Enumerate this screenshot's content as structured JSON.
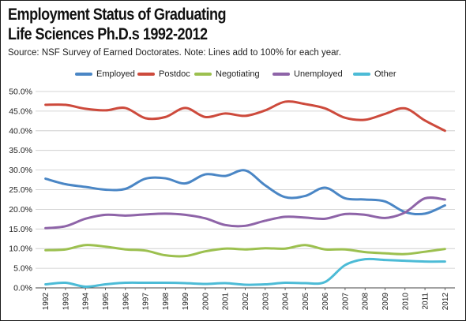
{
  "title_line1": "Employment Status of Graduating",
  "title_line2": "Life Sciences Ph.D.s 1992-2012",
  "source": "Source: NSF Survey of Earned Doctorates. Note: Lines add to 100% for each year.",
  "chart_data": {
    "type": "line",
    "x": [
      "1992",
      "1993",
      "1994",
      "1995",
      "1996",
      "1997",
      "1998",
      "1999",
      "2000",
      "2001",
      "2002",
      "2003",
      "2004",
      "2005",
      "2006",
      "2007",
      "2008",
      "2009",
      "2010",
      "2011",
      "2012"
    ],
    "ylim": [
      0,
      50
    ],
    "yticks": [
      "0.0%",
      "5.0%",
      "10.0%",
      "15.0%",
      "20.0%",
      "25.0%",
      "30.0%",
      "35.0%",
      "40.0%",
      "45.0%",
      "50.0%"
    ],
    "grid": true,
    "legend_position": "top",
    "series": [
      {
        "name": "Employed",
        "color": "#4a86c5",
        "values": [
          27.8,
          26.4,
          25.7,
          25.0,
          25.2,
          27.8,
          27.9,
          26.6,
          28.9,
          28.5,
          29.9,
          26.1,
          23.1,
          23.4,
          25.5,
          22.8,
          22.5,
          22.0,
          19.3,
          18.9,
          21.0
        ]
      },
      {
        "name": "Postdoc",
        "color": "#cd4a3c",
        "values": [
          46.6,
          46.6,
          45.6,
          45.2,
          45.8,
          43.2,
          43.5,
          45.8,
          43.5,
          44.4,
          43.8,
          45.2,
          47.4,
          46.8,
          45.7,
          43.3,
          42.8,
          44.3,
          45.7,
          42.6,
          40.0
        ]
      },
      {
        "name": "Negotiating",
        "color": "#9cc04f",
        "values": [
          9.6,
          9.8,
          10.9,
          10.5,
          9.8,
          9.5,
          8.3,
          8.1,
          9.3,
          10.0,
          9.8,
          10.1,
          10.0,
          10.9,
          9.8,
          9.8,
          9.1,
          8.8,
          8.6,
          9.2,
          9.9
        ]
      },
      {
        "name": "Unemployed",
        "color": "#8e64a8",
        "values": [
          15.2,
          15.7,
          17.6,
          18.6,
          18.4,
          18.7,
          18.9,
          18.6,
          17.7,
          16.0,
          15.8,
          17.1,
          18.1,
          17.9,
          17.6,
          18.8,
          18.6,
          17.8,
          19.2,
          22.8,
          22.5
        ]
      },
      {
        "name": "Other",
        "color": "#4cbbd6",
        "values": [
          0.9,
          1.3,
          0.3,
          0.9,
          1.3,
          1.3,
          1.3,
          1.2,
          1.0,
          1.2,
          0.8,
          0.9,
          1.3,
          1.2,
          1.5,
          5.8,
          7.3,
          7.1,
          6.9,
          6.7,
          6.7
        ]
      }
    ]
  }
}
